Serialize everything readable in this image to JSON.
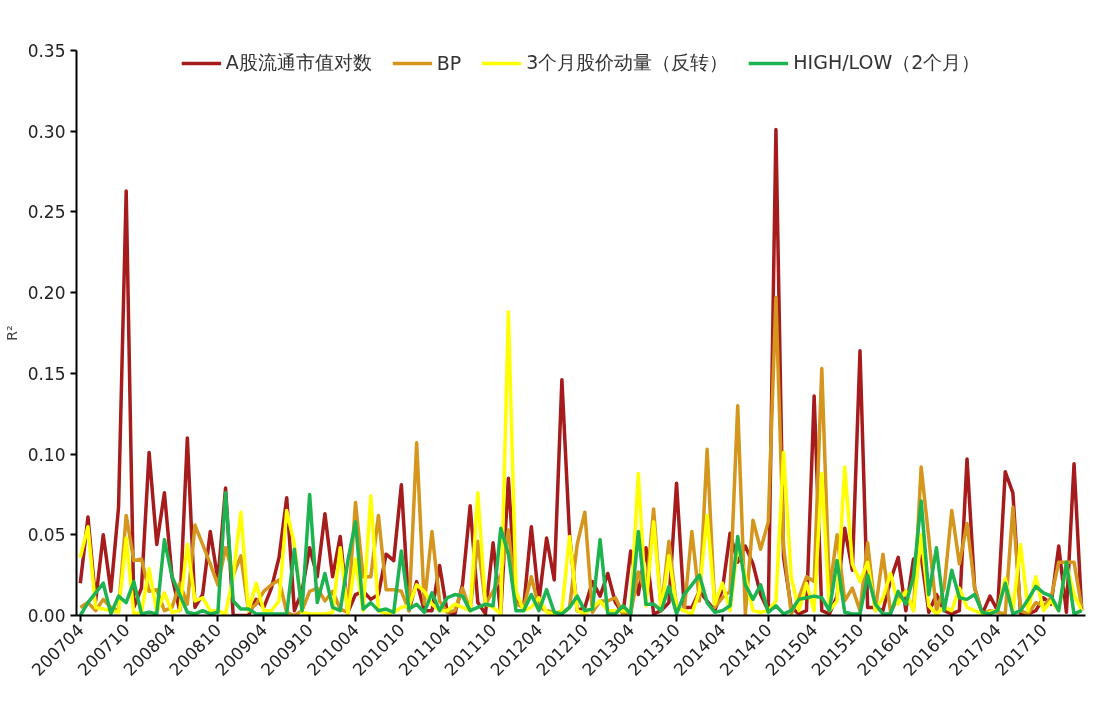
{
  "chart_data": {
    "type": "line",
    "ylabel": "R²",
    "categories": [
      "200704",
      null,
      null,
      null,
      null,
      null,
      "200710",
      null,
      null,
      null,
      null,
      null,
      "200804",
      null,
      null,
      null,
      null,
      null,
      "200810",
      null,
      null,
      null,
      null,
      null,
      "200904",
      null,
      null,
      null,
      null,
      null,
      "200910",
      null,
      null,
      null,
      null,
      null,
      "201004",
      null,
      null,
      null,
      null,
      null,
      "201010",
      null,
      null,
      null,
      null,
      null,
      "201104",
      null,
      null,
      null,
      null,
      null,
      "201110",
      null,
      null,
      null,
      null,
      null,
      "201204",
      null,
      null,
      null,
      null,
      null,
      "201210",
      null,
      null,
      null,
      null,
      null,
      "201304",
      null,
      null,
      null,
      null,
      null,
      "201310",
      null,
      null,
      null,
      null,
      null,
      "201404",
      null,
      null,
      null,
      null,
      null,
      "201410",
      null,
      null,
      null,
      null,
      null,
      "201504",
      null,
      null,
      null,
      null,
      null,
      "201510",
      null,
      null,
      null,
      null,
      null,
      "201604",
      null,
      null,
      null,
      null,
      null,
      "201610",
      null,
      null,
      null,
      null,
      null,
      "201704",
      null,
      null,
      null,
      null,
      null,
      "201710",
      null,
      null,
      null,
      null,
      null
    ],
    "ylim": [
      0,
      0.35
    ],
    "yticks": [
      {
        "value": 0,
        "label": "0.00"
      },
      {
        "value": 0.05,
        "label": "0.05"
      },
      {
        "value": 0.1,
        "label": "0.10"
      },
      {
        "value": 0.15,
        "label": "0.15"
      },
      {
        "value": 0.2,
        "label": "0.20"
      },
      {
        "value": 0.25,
        "label": "0.25"
      },
      {
        "value": 0.3,
        "label": "0.30"
      },
      {
        "value": 0.35,
        "label": "0.35"
      }
    ],
    "grid": false,
    "legend": "top",
    "marker": "none",
    "line_style": "solid",
    "series": [
      {
        "name": "A股流通市值对数",
        "color": "#a61c1c",
        "values": [
          0.02,
          0.061,
          0.009,
          0.05,
          0.015,
          0.067,
          0.263,
          0.005,
          0.017,
          0.101,
          0.044,
          0.076,
          0.024,
          0.003,
          0.11,
          0.005,
          0.013,
          0.052,
          0.022,
          0.079,
          0,
          0,
          0,
          0.01,
          0.005,
          0.017,
          0.036,
          0.073,
          0.003,
          0.015,
          0.042,
          0.024,
          0.063,
          0.024,
          0.049,
          0.002,
          0.013,
          0.015,
          0.01,
          0.013,
          0.038,
          0.034,
          0.081,
          0.003,
          0.021,
          0.003,
          0.003,
          0.031,
          0.002,
          0.001,
          0.019,
          0.068,
          0.008,
          0.001,
          0.045,
          0.001,
          0.085,
          0.009,
          0.005,
          0.055,
          0.009,
          0.048,
          0.022,
          0.146,
          0.05,
          0.003,
          0.005,
          0.021,
          0.012,
          0.026,
          0.008,
          0.001,
          0.04,
          0.013,
          0.042,
          0.001,
          0.003,
          0.008,
          0.082,
          0.005,
          0.005,
          0.015,
          0.009,
          0.003,
          0.016,
          0.051,
          0.033,
          0.043,
          0.032,
          0.013,
          0.003,
          0.301,
          0.036,
          0.005,
          0.001,
          0.003,
          0.136,
          0.003,
          0.001,
          0.012,
          0.054,
          0.028,
          0.164,
          0.005,
          0.005,
          0.003,
          0.022,
          0.036,
          0.003,
          0.035,
          0.037,
          0.002,
          0.013,
          0.003,
          0.001,
          0.003,
          0.097,
          0.017,
          0.001,
          0.012,
          0.003,
          0.089,
          0.076,
          0.001,
          0.001,
          0.003,
          0.011,
          0.007,
          0.043,
          0.002,
          0.094,
          0.003
        ]
      },
      {
        "name": "BP",
        "color": "#d4961c",
        "values": [
          0.005,
          0.008,
          0.003,
          0.01,
          0.005,
          0.003,
          0.062,
          0.034,
          0.035,
          0.015,
          0.016,
          0.003,
          0.005,
          0.02,
          0.007,
          0.056,
          0.044,
          0.032,
          0.019,
          0.042,
          0.025,
          0.037,
          0.003,
          0.007,
          0.015,
          0.019,
          0.022,
          0.002,
          0.0,
          0.003,
          0.015,
          0.017,
          0.009,
          0.015,
          0.004,
          0.002,
          0.07,
          0.024,
          0.024,
          0.062,
          0.016,
          0.016,
          0.015,
          0.003,
          0.107,
          0.007,
          0.052,
          0.009,
          0.002,
          0.003,
          0.017,
          0.003,
          0.046,
          0.007,
          0.015,
          0.024,
          0.053,
          0.007,
          0.005,
          0.024,
          0.005,
          0.003,
          0.002,
          0.001,
          0.005,
          0.044,
          0.064,
          0.002,
          0.009,
          0.009,
          0.011,
          0.001,
          0.001,
          0.027,
          0.013,
          0.066,
          0.003,
          0.046,
          0.005,
          0.003,
          0.052,
          0.009,
          0.103,
          0.005,
          0.011,
          0.015,
          0.13,
          0.001,
          0.059,
          0.041,
          0.058,
          0.197,
          0.043,
          0.001,
          0.011,
          0.024,
          0.021,
          0.153,
          0.015,
          0.05,
          0.009,
          0.017,
          0.003,
          0.045,
          0.003,
          0.038,
          0.002,
          0.011,
          0.015,
          0.003,
          0.092,
          0.048,
          0.003,
          0.017,
          0.065,
          0.032,
          0.057,
          0.017,
          0.001,
          0.003,
          0.002,
          0.001,
          0.067,
          0.003,
          0.001,
          0.008,
          0.006,
          0.011,
          0.033,
          0.033,
          0.033,
          0.005
        ]
      },
      {
        "name": "3个月股价动量（反转）",
        "color": "#ffff00",
        "values": [
          0.036,
          0.055,
          0.005,
          0.004,
          0.003,
          0.002,
          0.048,
          0.001,
          0.002,
          0.029,
          0.002,
          0.014,
          0.002,
          0.003,
          0.044,
          0.009,
          0.011,
          0.003,
          0.003,
          0.001,
          0.024,
          0.064,
          0.003,
          0.02,
          0.003,
          0.003,
          0.009,
          0.065,
          0.044,
          0.002,
          0.001,
          0.001,
          0.001,
          0.002,
          0.042,
          0.001,
          0.035,
          0.003,
          0.074,
          0.003,
          0.001,
          0.002,
          0.005,
          0.006,
          0.019,
          0.015,
          0.007,
          0.003,
          0.003,
          0.007,
          0.005,
          0.003,
          0.076,
          0.007,
          0.005,
          0.001,
          0.188,
          0.015,
          0.003,
          0.005,
          0.011,
          0.002,
          0.001,
          0.003,
          0.049,
          0.003,
          0.001,
          0.005,
          0.009,
          0.003,
          0.003,
          0.003,
          0.003,
          0.088,
          0.006,
          0.058,
          0.003,
          0.037,
          0.005,
          0.003,
          0.001,
          0.015,
          0.062,
          0.007,
          0.02,
          0.003,
          0.044,
          0.024,
          0.003,
          0.002,
          0.003,
          0.009,
          0.101,
          0.024,
          0.003,
          0.02,
          0.003,
          0.088,
          0.003,
          0.009,
          0.092,
          0.032,
          0.021,
          0.033,
          0.003,
          0.011,
          0.026,
          0.007,
          0.015,
          0.003,
          0.05,
          0.006,
          0.001,
          0.005,
          0.003,
          0.017,
          0.005,
          0.003,
          0.001,
          0.002,
          0.003,
          0.023,
          0.003,
          0.044,
          0.003,
          0.024,
          0.003,
          0.009,
          0.003,
          0.032,
          0.013,
          0.003
        ]
      },
      {
        "name": "HIGH/LOW（2个月）",
        "color": "#1db350",
        "values": [
          0.0,
          0.008,
          0.014,
          0.02,
          0.001,
          0.012,
          0.008,
          0.021,
          0.001,
          0.002,
          0.001,
          0.047,
          0.024,
          0.013,
          0.002,
          0.001,
          0.003,
          0.001,
          0.002,
          0.076,
          0.009,
          0.004,
          0.004,
          0.001,
          0.001,
          0.001,
          0.001,
          0.001,
          0.041,
          0.003,
          0.075,
          0.008,
          0.026,
          0.005,
          0.003,
          0.034,
          0.058,
          0.004,
          0.008,
          0.003,
          0.004,
          0.002,
          0.04,
          0.004,
          0.007,
          0.002,
          0.014,
          0.003,
          0.011,
          0.013,
          0.012,
          0.003,
          0.005,
          0.007,
          0.006,
          0.054,
          0.038,
          0.003,
          0.003,
          0.013,
          0.003,
          0.016,
          0.002,
          0.001,
          0.005,
          0.012,
          0.003,
          0.004,
          0.047,
          0.001,
          0.001,
          0.006,
          0.001,
          0.052,
          0.007,
          0.007,
          0.003,
          0.018,
          0.001,
          0.013,
          0.019,
          0.025,
          0.008,
          0.002,
          0.003,
          0.006,
          0.049,
          0.019,
          0.01,
          0.019,
          0.002,
          0.006,
          0.001,
          0.003,
          0.01,
          0.011,
          0.012,
          0.011,
          0.003,
          0.034,
          0.002,
          0.001,
          0.001,
          0.025,
          0.007,
          0.001,
          0.001,
          0.015,
          0.007,
          0.024,
          0.071,
          0.013,
          0.042,
          0.003,
          0.028,
          0.011,
          0.01,
          0.013,
          0.002,
          0.001,
          0.003,
          0.02,
          0.001,
          0.003,
          0.01,
          0.018,
          0.014,
          0.012,
          0.003,
          0.033,
          0.001,
          0.003
        ]
      }
    ]
  }
}
